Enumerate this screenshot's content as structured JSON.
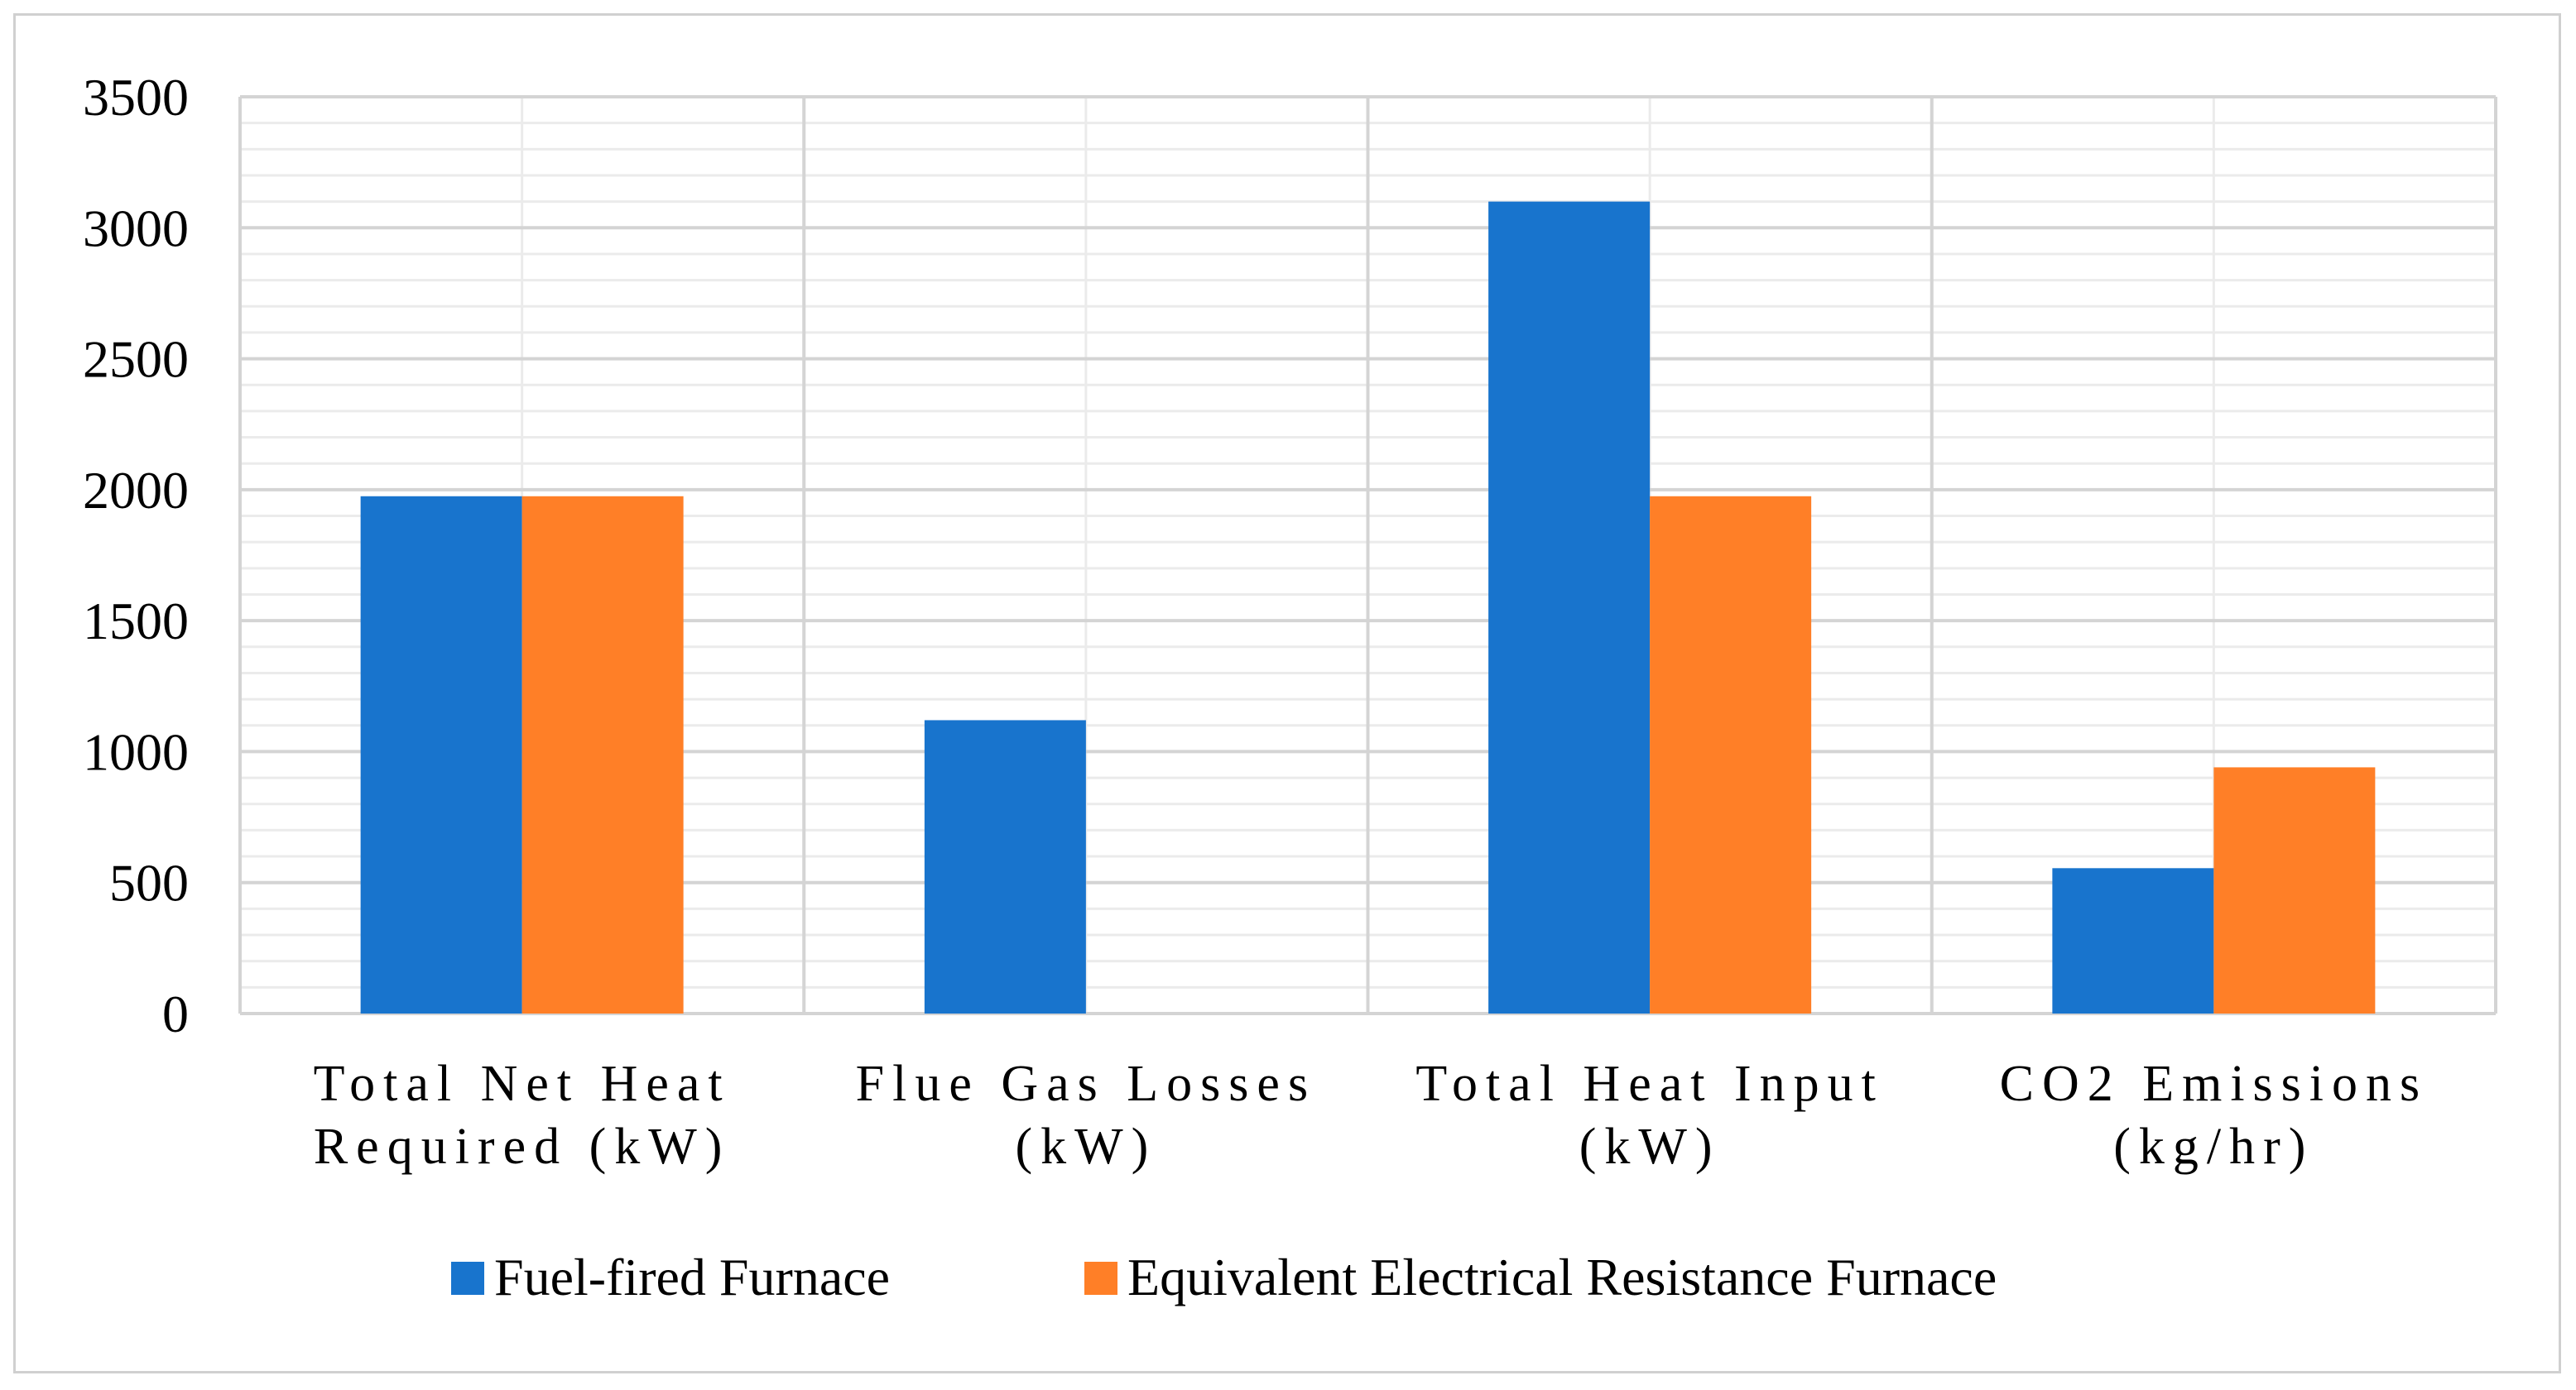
{
  "chart_data": {
    "type": "bar",
    "categories": [
      [
        "Total Net Heat",
        "Required (kW)"
      ],
      [
        "Flue Gas Losses",
        "(kW)"
      ],
      [
        "Total Heat Input",
        "(kW)"
      ],
      [
        "CO2 Emissions",
        "(kg/hr)"
      ]
    ],
    "series": [
      {
        "name": "Fuel-fired Furnace",
        "color": "#1874CD",
        "values": [
          1975,
          1120,
          3100,
          555
        ]
      },
      {
        "name": "Equivalent Electrical Resistance Furnace",
        "color": "#FF7F27",
        "values": [
          1975,
          0,
          1975,
          940
        ]
      }
    ],
    "yticks": [
      "0",
      "500",
      "1000",
      "1500",
      "2000",
      "2500",
      "3000",
      "3500"
    ],
    "ylim": [
      0,
      3500
    ],
    "grid": true,
    "legend_position": "bottom"
  }
}
